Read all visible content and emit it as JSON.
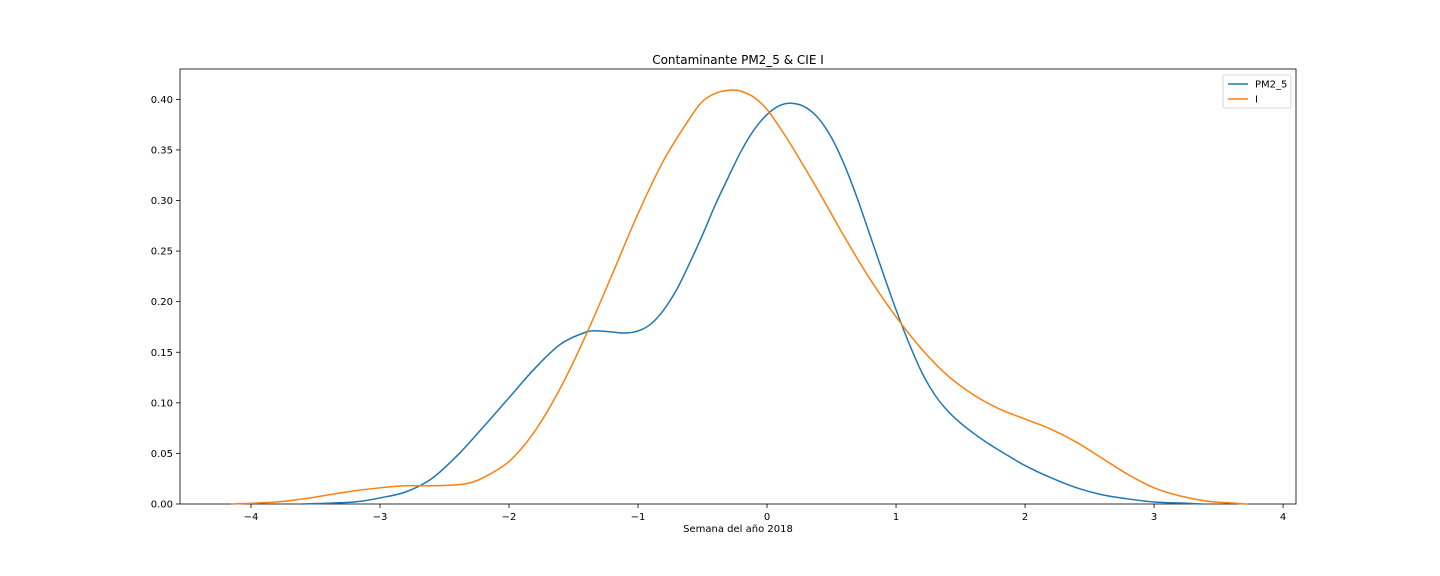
{
  "chart_data": {
    "type": "line",
    "title": "Contaminante PM2_5 & CIE I",
    "xlabel": "Semana del año 2018",
    "ylabel": "",
    "xlim": [
      -4.55,
      4.1
    ],
    "ylim": [
      0,
      0.43
    ],
    "xticks": [
      -4,
      -3,
      -2,
      -1,
      0,
      1,
      2,
      3,
      4
    ],
    "xtick_labels": [
      "−4",
      "−3",
      "−2",
      "−1",
      "0",
      "1",
      "2",
      "3",
      "4"
    ],
    "yticks": [
      0.0,
      0.05,
      0.1,
      0.15,
      0.2,
      0.25,
      0.3,
      0.35,
      0.4
    ],
    "ytick_labels": [
      "0.00",
      "0.05",
      "0.10",
      "0.15",
      "0.20",
      "0.25",
      "0.30",
      "0.35",
      "0.40"
    ],
    "grid": false,
    "legend": "top-right",
    "series": [
      {
        "name": "PM2_5",
        "color": "#1f77b4",
        "x": [
          -3.6,
          -3.2,
          -3.0,
          -2.8,
          -2.6,
          -2.4,
          -2.2,
          -2.0,
          -1.8,
          -1.6,
          -1.4,
          -1.3,
          -1.2,
          -1.1,
          -1.0,
          -0.9,
          -0.8,
          -0.7,
          -0.6,
          -0.5,
          -0.4,
          -0.3,
          -0.2,
          -0.1,
          0.0,
          0.1,
          0.2,
          0.3,
          0.4,
          0.5,
          0.6,
          0.7,
          0.8,
          0.9,
          1.0,
          1.1,
          1.2,
          1.3,
          1.4,
          1.5,
          1.6,
          1.7,
          1.8,
          2.0,
          2.2,
          2.4,
          2.6,
          2.8,
          3.0,
          3.2,
          3.37
        ],
        "y": [
          0.0,
          0.002,
          0.006,
          0.012,
          0.025,
          0.048,
          0.076,
          0.105,
          0.134,
          0.158,
          0.17,
          0.171,
          0.17,
          0.169,
          0.171,
          0.178,
          0.192,
          0.212,
          0.238,
          0.266,
          0.296,
          0.323,
          0.349,
          0.37,
          0.385,
          0.394,
          0.396,
          0.392,
          0.381,
          0.362,
          0.335,
          0.302,
          0.265,
          0.228,
          0.192,
          0.159,
          0.13,
          0.108,
          0.092,
          0.08,
          0.07,
          0.061,
          0.053,
          0.038,
          0.026,
          0.016,
          0.009,
          0.005,
          0.002,
          0.001,
          0.0
        ]
      },
      {
        "name": "I",
        "color": "#ff7f0e",
        "x": [
          -4.15,
          -3.8,
          -3.6,
          -3.4,
          -3.2,
          -3.0,
          -2.8,
          -2.6,
          -2.4,
          -2.3,
          -2.2,
          -2.0,
          -1.8,
          -1.6,
          -1.4,
          -1.2,
          -1.0,
          -0.8,
          -0.6,
          -0.5,
          -0.4,
          -0.3,
          -0.25,
          -0.2,
          -0.1,
          0.0,
          0.1,
          0.2,
          0.4,
          0.6,
          0.8,
          1.0,
          1.2,
          1.4,
          1.6,
          1.8,
          2.0,
          2.2,
          2.4,
          2.6,
          2.8,
          3.0,
          3.2,
          3.4,
          3.6,
          3.72
        ],
        "y": [
          0.0,
          0.002,
          0.005,
          0.009,
          0.013,
          0.016,
          0.018,
          0.018,
          0.019,
          0.021,
          0.026,
          0.042,
          0.072,
          0.115,
          0.168,
          0.227,
          0.287,
          0.34,
          0.381,
          0.398,
          0.406,
          0.409,
          0.409,
          0.408,
          0.402,
          0.39,
          0.372,
          0.352,
          0.309,
          0.264,
          0.222,
          0.185,
          0.153,
          0.127,
          0.108,
          0.094,
          0.084,
          0.074,
          0.061,
          0.045,
          0.029,
          0.016,
          0.008,
          0.003,
          0.001,
          0.0
        ]
      }
    ]
  }
}
